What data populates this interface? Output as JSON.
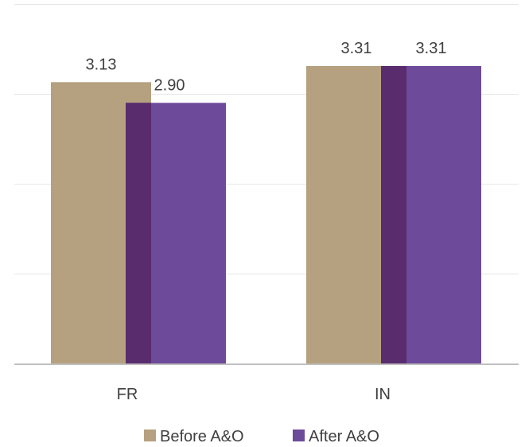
{
  "chart_data": {
    "type": "bar",
    "title": "",
    "xlabel": "",
    "ylabel": "",
    "categories": [
      "FR",
      "IN"
    ],
    "series": [
      {
        "name": "Before A&O",
        "values": [
          3.13,
          3.31
        ],
        "labels": [
          "3.13",
          "3.31"
        ],
        "color": "#b5a17f"
      },
      {
        "name": "After A&O",
        "values": [
          2.9,
          3.31
        ],
        "labels": [
          "2.90",
          "3.31"
        ],
        "color": "#6d4a9a"
      }
    ],
    "overlap_color": "#592c6e",
    "ylim": [
      0,
      4
    ],
    "yticks": [
      0,
      1,
      2,
      3,
      4
    ],
    "grid": true,
    "legend_position": "bottom"
  }
}
